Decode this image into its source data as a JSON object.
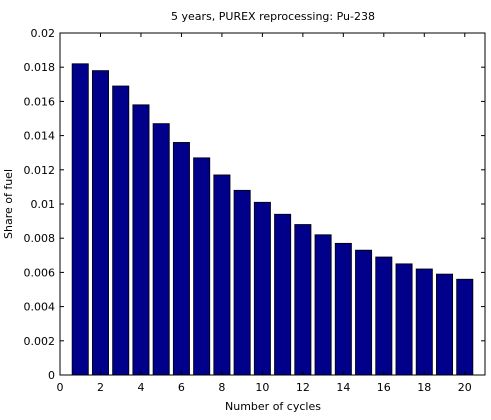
{
  "chart_data": {
    "type": "bar",
    "title": "5 years, PUREX reprocessing: Pu-238",
    "xlabel": "Number of cycles",
    "ylabel": "Share of fuel",
    "xlim": [
      0,
      21
    ],
    "ylim": [
      0,
      0.02
    ],
    "x_ticks": [
      0,
      2,
      4,
      6,
      8,
      10,
      12,
      14,
      16,
      18,
      20
    ],
    "x_tick_labels": [
      "0",
      "2",
      "4",
      "6",
      "8",
      "10",
      "12",
      "14",
      "16",
      "18",
      "20"
    ],
    "y_ticks": [
      0,
      0.002,
      0.004,
      0.006,
      0.008,
      0.01,
      0.012,
      0.014,
      0.016,
      0.018,
      0.02
    ],
    "y_tick_labels": [
      "0",
      "0.002",
      "0.004",
      "0.006",
      "0.008",
      "0.01",
      "0.012",
      "0.014",
      "0.016",
      "0.018",
      "0.02"
    ],
    "grid": false,
    "legend": "none",
    "bar_color": "#00008B",
    "categories": [
      1,
      2,
      3,
      4,
      5,
      6,
      7,
      8,
      9,
      10,
      11,
      12,
      13,
      14,
      15,
      16,
      17,
      18,
      19,
      20
    ],
    "values": [
      0.0182,
      0.0178,
      0.0169,
      0.0158,
      0.0147,
      0.0136,
      0.0127,
      0.0117,
      0.0108,
      0.0101,
      0.0094,
      0.0088,
      0.0082,
      0.0077,
      0.0073,
      0.0069,
      0.0065,
      0.0062,
      0.0059,
      0.0056
    ]
  }
}
